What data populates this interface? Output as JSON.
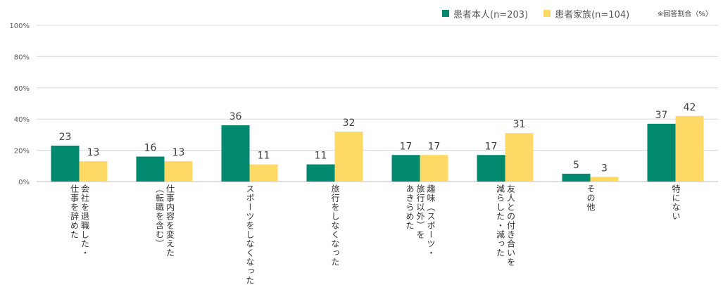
{
  "chart_data": {
    "type": "bar",
    "note": "※回答割合（%）",
    "categories": [
      "会社を退職した・\n仕事を辞めた",
      "仕事内容を変えた\n（転職を含む）",
      "スポーツをしなくなった",
      "旅行をしなくなった",
      "趣味（スポーツ・\n旅行以外）を\nあきらめた",
      "友人との付き合いを\n減らした・減った",
      "その他",
      "特にない"
    ],
    "series": [
      {
        "name": "患者本人(n=203)",
        "color": "#00896e",
        "values": [
          23,
          16,
          36,
          11,
          17,
          17,
          5,
          37
        ]
      },
      {
        "name": "患者家族(n=104)",
        "color": "#ffd966",
        "values": [
          13,
          13,
          11,
          32,
          17,
          31,
          3,
          42
        ]
      }
    ],
    "yticks": [
      "0%",
      "20%",
      "40%",
      "60%",
      "80%",
      "100%"
    ],
    "ylim": [
      0,
      100
    ],
    "grid": true,
    "legend_position": "top-right"
  }
}
